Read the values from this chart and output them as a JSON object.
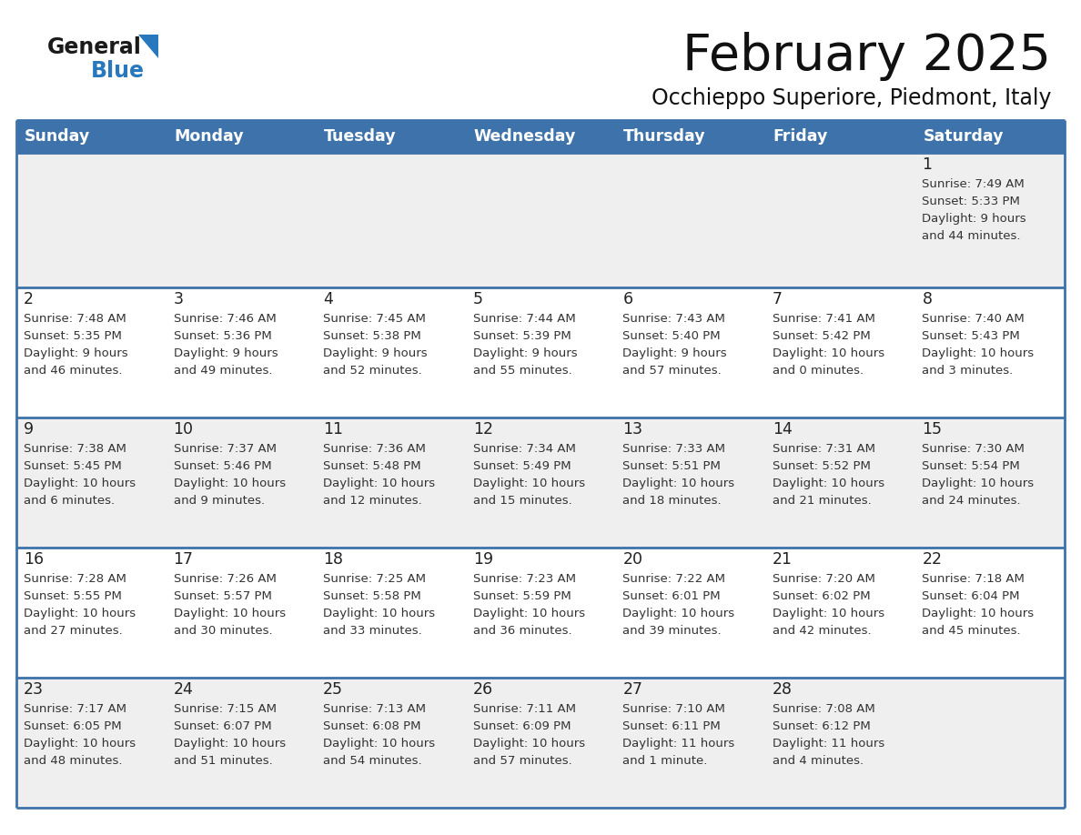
{
  "title": "February 2025",
  "subtitle": "Occhieppo Superiore, Piedmont, Italy",
  "header_bg": "#3D72AA",
  "header_text_color": "#FFFFFF",
  "cell_bg_light": "#EFEFEF",
  "cell_bg_white": "#FFFFFF",
  "border_color": "#3D72AA",
  "border_thin_color": "#A0A0C0",
  "day_headers": [
    "Sunday",
    "Monday",
    "Tuesday",
    "Wednesday",
    "Thursday",
    "Friday",
    "Saturday"
  ],
  "title_color": "#111111",
  "subtitle_color": "#111111",
  "day_number_color": "#222222",
  "info_color": "#333333",
  "logo_general_color": "#1a1a1a",
  "logo_blue_color": "#2878BE",
  "weeks": [
    [
      {
        "day": "",
        "info": ""
      },
      {
        "day": "",
        "info": ""
      },
      {
        "day": "",
        "info": ""
      },
      {
        "day": "",
        "info": ""
      },
      {
        "day": "",
        "info": ""
      },
      {
        "day": "",
        "info": ""
      },
      {
        "day": "1",
        "info": "Sunrise: 7:49 AM\nSunset: 5:33 PM\nDaylight: 9 hours\nand 44 minutes."
      }
    ],
    [
      {
        "day": "2",
        "info": "Sunrise: 7:48 AM\nSunset: 5:35 PM\nDaylight: 9 hours\nand 46 minutes."
      },
      {
        "day": "3",
        "info": "Sunrise: 7:46 AM\nSunset: 5:36 PM\nDaylight: 9 hours\nand 49 minutes."
      },
      {
        "day": "4",
        "info": "Sunrise: 7:45 AM\nSunset: 5:38 PM\nDaylight: 9 hours\nand 52 minutes."
      },
      {
        "day": "5",
        "info": "Sunrise: 7:44 AM\nSunset: 5:39 PM\nDaylight: 9 hours\nand 55 minutes."
      },
      {
        "day": "6",
        "info": "Sunrise: 7:43 AM\nSunset: 5:40 PM\nDaylight: 9 hours\nand 57 minutes."
      },
      {
        "day": "7",
        "info": "Sunrise: 7:41 AM\nSunset: 5:42 PM\nDaylight: 10 hours\nand 0 minutes."
      },
      {
        "day": "8",
        "info": "Sunrise: 7:40 AM\nSunset: 5:43 PM\nDaylight: 10 hours\nand 3 minutes."
      }
    ],
    [
      {
        "day": "9",
        "info": "Sunrise: 7:38 AM\nSunset: 5:45 PM\nDaylight: 10 hours\nand 6 minutes."
      },
      {
        "day": "10",
        "info": "Sunrise: 7:37 AM\nSunset: 5:46 PM\nDaylight: 10 hours\nand 9 minutes."
      },
      {
        "day": "11",
        "info": "Sunrise: 7:36 AM\nSunset: 5:48 PM\nDaylight: 10 hours\nand 12 minutes."
      },
      {
        "day": "12",
        "info": "Sunrise: 7:34 AM\nSunset: 5:49 PM\nDaylight: 10 hours\nand 15 minutes."
      },
      {
        "day": "13",
        "info": "Sunrise: 7:33 AM\nSunset: 5:51 PM\nDaylight: 10 hours\nand 18 minutes."
      },
      {
        "day": "14",
        "info": "Sunrise: 7:31 AM\nSunset: 5:52 PM\nDaylight: 10 hours\nand 21 minutes."
      },
      {
        "day": "15",
        "info": "Sunrise: 7:30 AM\nSunset: 5:54 PM\nDaylight: 10 hours\nand 24 minutes."
      }
    ],
    [
      {
        "day": "16",
        "info": "Sunrise: 7:28 AM\nSunset: 5:55 PM\nDaylight: 10 hours\nand 27 minutes."
      },
      {
        "day": "17",
        "info": "Sunrise: 7:26 AM\nSunset: 5:57 PM\nDaylight: 10 hours\nand 30 minutes."
      },
      {
        "day": "18",
        "info": "Sunrise: 7:25 AM\nSunset: 5:58 PM\nDaylight: 10 hours\nand 33 minutes."
      },
      {
        "day": "19",
        "info": "Sunrise: 7:23 AM\nSunset: 5:59 PM\nDaylight: 10 hours\nand 36 minutes."
      },
      {
        "day": "20",
        "info": "Sunrise: 7:22 AM\nSunset: 6:01 PM\nDaylight: 10 hours\nand 39 minutes."
      },
      {
        "day": "21",
        "info": "Sunrise: 7:20 AM\nSunset: 6:02 PM\nDaylight: 10 hours\nand 42 minutes."
      },
      {
        "day": "22",
        "info": "Sunrise: 7:18 AM\nSunset: 6:04 PM\nDaylight: 10 hours\nand 45 minutes."
      }
    ],
    [
      {
        "day": "23",
        "info": "Sunrise: 7:17 AM\nSunset: 6:05 PM\nDaylight: 10 hours\nand 48 minutes."
      },
      {
        "day": "24",
        "info": "Sunrise: 7:15 AM\nSunset: 6:07 PM\nDaylight: 10 hours\nand 51 minutes."
      },
      {
        "day": "25",
        "info": "Sunrise: 7:13 AM\nSunset: 6:08 PM\nDaylight: 10 hours\nand 54 minutes."
      },
      {
        "day": "26",
        "info": "Sunrise: 7:11 AM\nSunset: 6:09 PM\nDaylight: 10 hours\nand 57 minutes."
      },
      {
        "day": "27",
        "info": "Sunrise: 7:10 AM\nSunset: 6:11 PM\nDaylight: 11 hours\nand 1 minute."
      },
      {
        "day": "28",
        "info": "Sunrise: 7:08 AM\nSunset: 6:12 PM\nDaylight: 11 hours\nand 4 minutes."
      },
      {
        "day": "",
        "info": ""
      }
    ]
  ]
}
